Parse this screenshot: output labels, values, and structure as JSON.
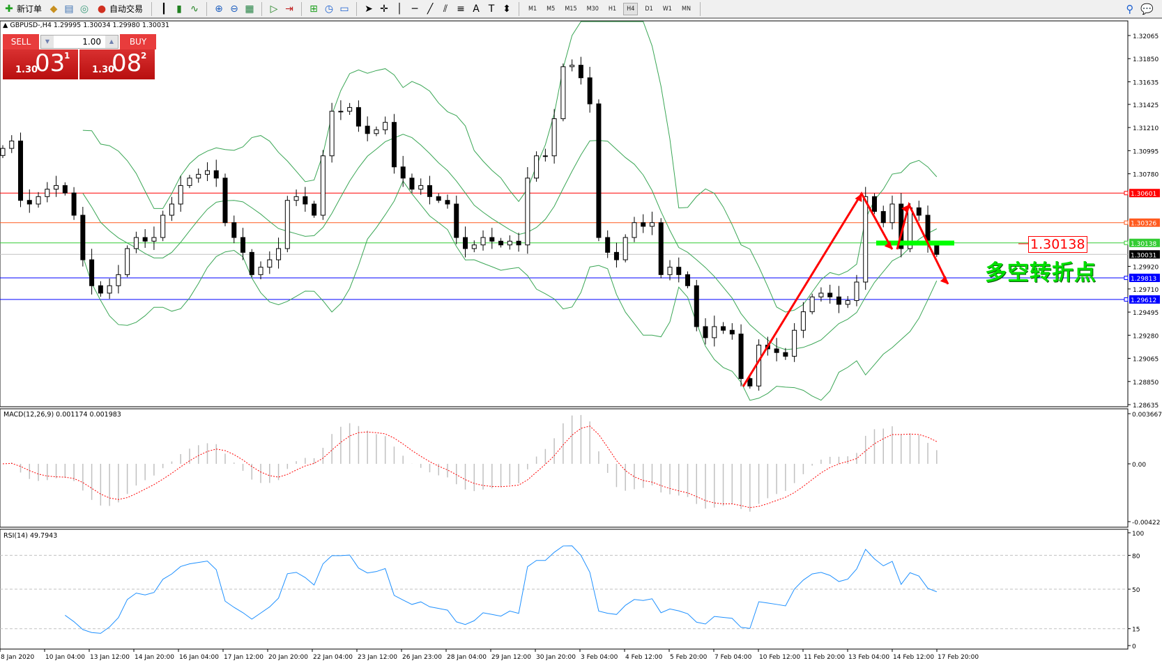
{
  "toolbar": {
    "new_order": "新订单",
    "auto_trading": "自动交易",
    "timeframes": [
      "M1",
      "M5",
      "M15",
      "M30",
      "H1",
      "H4",
      "D1",
      "W1",
      "MN"
    ],
    "active_timeframe": "H4"
  },
  "chart_header": "GBPUSD-,H4  1.29995 1.30034 1.29980 1.30031",
  "trade_panel": {
    "sell_label": "SELL",
    "buy_label": "BUY",
    "lot": "1.00",
    "sell_price": {
      "prefix": "1.30",
      "big": "03",
      "sup": "1"
    },
    "buy_price": {
      "prefix": "1.30",
      "big": "08",
      "sup": "2"
    }
  },
  "price_axis": {
    "ticks": [
      "1.32065",
      "1.31850",
      "1.31635",
      "1.31425",
      "1.31210",
      "1.30995",
      "1.30780",
      "1.29920",
      "1.29710",
      "1.29495",
      "1.29280",
      "1.29065",
      "1.28850",
      "1.28635"
    ],
    "range": [
      1.28635,
      1.32065
    ]
  },
  "horizontal_lines": [
    {
      "price": "1.30601",
      "color": "#ff0000",
      "label_text": "#ffffff"
    },
    {
      "price": "1.30326",
      "color": "#ff5a1e",
      "label_text": "#ffffff"
    },
    {
      "price": "1.30138",
      "color": "#33cc33",
      "label_text": "#ffffff"
    },
    {
      "price": "1.30031",
      "color": "#c0c0c0",
      "label_bg": "#000000",
      "label_text": "#ffffff"
    },
    {
      "price": "1.29813",
      "color": "#0000ff",
      "label_text": "#ffffff"
    },
    {
      "price": "1.29612",
      "color": "#0000ff",
      "label_text": "#ffffff"
    }
  ],
  "time_axis": [
    "8 Jan 2020",
    "10 Jan 04:00",
    "13 Jan 12:00",
    "14 Jan 20:00",
    "16 Jan 04:00",
    "17 Jan 12:00",
    "20 Jan 20:00",
    "22 Jan 04:00",
    "23 Jan 12:00",
    "26 Jan 23:00",
    "28 Jan 04:00",
    "29 Jan 12:00",
    "30 Jan 20:00",
    "3 Feb 04:00",
    "4 Feb 12:00",
    "5 Feb 20:00",
    "7 Feb 04:00",
    "10 Feb 12:00",
    "11 Feb 20:00",
    "13 Feb 04:00",
    "14 Feb 12:00",
    "17 Feb 20:00"
  ],
  "candles_close": [
    1.31016,
    1.31085,
    1.30533,
    1.30499,
    1.30568,
    1.30637,
    1.30671,
    1.30602,
    1.30395,
    1.29981,
    1.2974,
    1.29671,
    1.2974,
    1.29843,
    1.30085,
    1.30188,
    1.30154,
    1.30188,
    1.30395,
    1.30499,
    1.30671,
    1.3074,
    1.30775,
    1.30809,
    1.3074,
    1.30326,
    1.30188,
    1.3005,
    1.29843,
    1.29912,
    1.29981,
    1.30085,
    1.30533,
    1.30568,
    1.30499,
    1.30395,
    1.30947,
    1.31361,
    1.31361,
    1.31396,
    1.31223,
    1.31154,
    1.31189,
    1.31258,
    1.30844,
    1.3074,
    1.30637,
    1.30671,
    1.30568,
    1.30533,
    1.30499,
    1.30188,
    1.30085,
    1.30119,
    1.30188,
    1.30154,
    1.30119,
    1.30154,
    1.30119,
    1.3074,
    1.30947,
    1.30947,
    1.31292,
    1.31775,
    1.31789,
    1.31672,
    1.3143,
    1.30188,
    1.3005,
    1.29981,
    1.30188,
    1.30326,
    1.30292,
    1.30326,
    1.29843,
    1.29912,
    1.29843,
    1.2974,
    1.2936,
    1.29257,
    1.2936,
    1.29326,
    1.29291,
    1.28877,
    1.28808,
    1.29188,
    1.29153,
    1.29119,
    1.29084,
    1.29326,
    1.29498,
    1.29636,
    1.29671,
    1.29636,
    1.29567,
    1.29602,
    1.29774,
    1.30568,
    1.3043,
    1.30326,
    1.30499,
    1.30085,
    1.30464,
    1.30395,
    1.30119,
    1.30031
  ],
  "indicators": {
    "bollinger_color": "#3aa655",
    "macd": {
      "label": "MACD(12,26,9) 0.001174 0.001983",
      "ticks": [
        "0.003667",
        "0.00",
        "-0.00422"
      ],
      "range": [
        -0.00422,
        0.003667
      ],
      "histogram_color": "#c0c0c0",
      "signal_color": "#ff0000"
    },
    "rsi": {
      "label": "RSI(14) 49.7943",
      "ticks": [
        "100",
        "80",
        "50",
        "15",
        "0"
      ],
      "levels": [
        80,
        50,
        15
      ],
      "color": "#1e90ff"
    }
  },
  "annotations": {
    "level_label": "1.30138",
    "text": "多空转折点",
    "arrow_color": "#ff0000",
    "zone_color": "#00ff00"
  }
}
